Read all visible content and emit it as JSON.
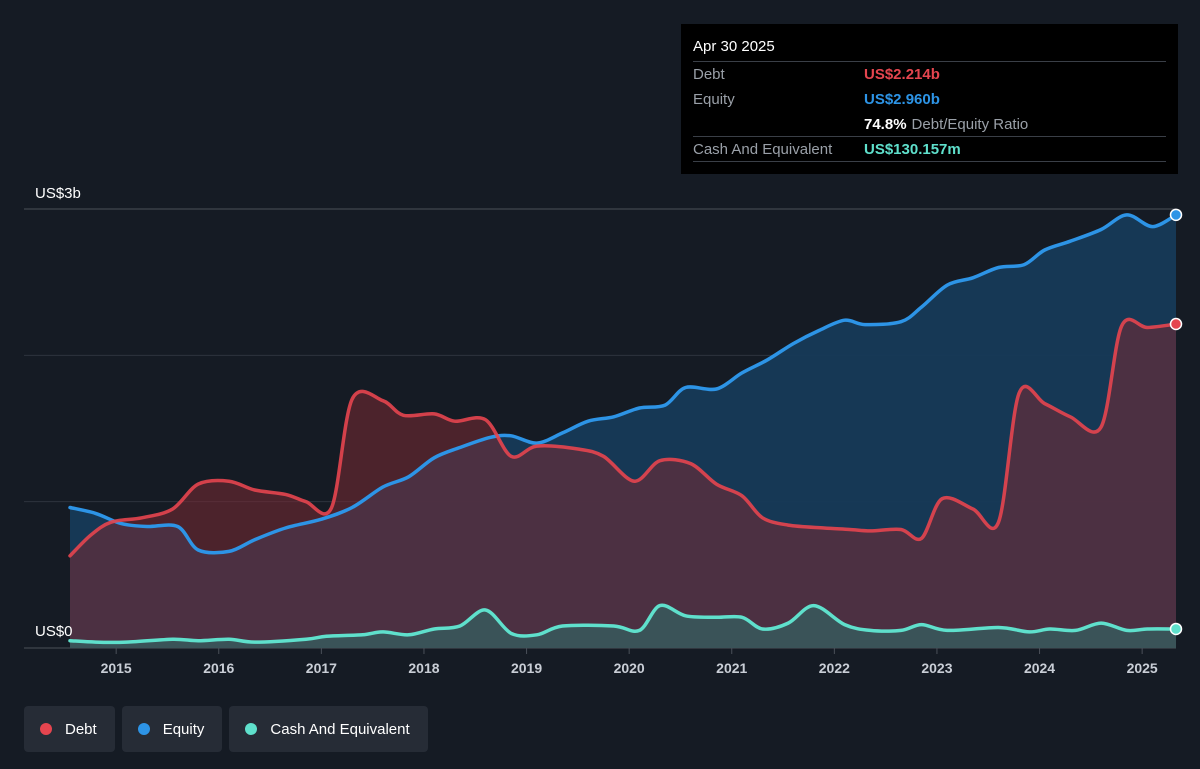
{
  "tooltip": {
    "date": "Apr 30 2025",
    "debt_label": "Debt",
    "debt_value": "US$2.214b",
    "equity_label": "Equity",
    "equity_value": "US$2.960b",
    "ratio_value": "74.8%",
    "ratio_label": "Debt/Equity Ratio",
    "cash_label": "Cash And Equivalent",
    "cash_value": "US$130.157m"
  },
  "legend": [
    {
      "label": "Debt",
      "color": "#e5454f"
    },
    {
      "label": "Equity",
      "color": "#2d94e6"
    },
    {
      "label": "Cash And Equivalent",
      "color": "#5fe0cc"
    }
  ],
  "colors": {
    "debt": "#e5454f",
    "equity": "#2d94e6",
    "cash": "#5fe0cc",
    "background": "#151b24"
  },
  "chart_data": {
    "type": "area",
    "y_axis_labels": [
      "US$3b",
      "US$0"
    ],
    "ylim": [
      0,
      3.0
    ],
    "y_unit": "US$ billions",
    "grid": true,
    "legend_position": "bottom-left",
    "x_ticks": [
      "2015",
      "2016",
      "2017",
      "2018",
      "2019",
      "2020",
      "2021",
      "2022",
      "2023",
      "2024",
      "2025"
    ],
    "x_tick_values": [
      2015,
      2016,
      2017,
      2018,
      2019,
      2020,
      2021,
      2022,
      2023,
      2024,
      2025
    ],
    "xlim": [
      2014.55,
      2025.33
    ],
    "series": [
      {
        "name": "Debt",
        "points": [
          [
            2014.55,
            0.63
          ],
          [
            2014.75,
            0.77
          ],
          [
            2014.95,
            0.86
          ],
          [
            2015.25,
            0.89
          ],
          [
            2015.55,
            0.95
          ],
          [
            2015.8,
            1.12
          ],
          [
            2016.1,
            1.14
          ],
          [
            2016.35,
            1.08
          ],
          [
            2016.65,
            1.05
          ],
          [
            2016.85,
            1.0
          ],
          [
            2017.1,
            0.96
          ],
          [
            2017.3,
            1.7
          ],
          [
            2017.6,
            1.69
          ],
          [
            2017.8,
            1.59
          ],
          [
            2018.1,
            1.6
          ],
          [
            2018.3,
            1.55
          ],
          [
            2018.6,
            1.56
          ],
          [
            2018.85,
            1.31
          ],
          [
            2019.1,
            1.38
          ],
          [
            2019.5,
            1.36
          ],
          [
            2019.75,
            1.31
          ],
          [
            2020.05,
            1.14
          ],
          [
            2020.3,
            1.28
          ],
          [
            2020.6,
            1.26
          ],
          [
            2020.85,
            1.12
          ],
          [
            2021.1,
            1.04
          ],
          [
            2021.3,
            0.89
          ],
          [
            2021.55,
            0.84
          ],
          [
            2021.9,
            0.82
          ],
          [
            2022.15,
            0.81
          ],
          [
            2022.35,
            0.8
          ],
          [
            2022.65,
            0.81
          ],
          [
            2022.85,
            0.75
          ],
          [
            2023.05,
            1.02
          ],
          [
            2023.35,
            0.95
          ],
          [
            2023.6,
            0.86
          ],
          [
            2023.8,
            1.74
          ],
          [
            2024.05,
            1.67
          ],
          [
            2024.3,
            1.58
          ],
          [
            2024.6,
            1.51
          ],
          [
            2024.8,
            2.2
          ],
          [
            2025.05,
            2.19
          ],
          [
            2025.33,
            2.214
          ]
        ]
      },
      {
        "name": "Equity",
        "points": [
          [
            2014.55,
            0.96
          ],
          [
            2014.8,
            0.92
          ],
          [
            2015.05,
            0.85
          ],
          [
            2015.3,
            0.83
          ],
          [
            2015.6,
            0.83
          ],
          [
            2015.8,
            0.67
          ],
          [
            2016.1,
            0.66
          ],
          [
            2016.35,
            0.74
          ],
          [
            2016.65,
            0.82
          ],
          [
            2017.0,
            0.88
          ],
          [
            2017.3,
            0.96
          ],
          [
            2017.6,
            1.1
          ],
          [
            2017.85,
            1.17
          ],
          [
            2018.1,
            1.3
          ],
          [
            2018.35,
            1.37
          ],
          [
            2018.65,
            1.44
          ],
          [
            2018.85,
            1.45
          ],
          [
            2019.1,
            1.4
          ],
          [
            2019.35,
            1.47
          ],
          [
            2019.6,
            1.55
          ],
          [
            2019.85,
            1.58
          ],
          [
            2020.1,
            1.64
          ],
          [
            2020.35,
            1.66
          ],
          [
            2020.55,
            1.78
          ],
          [
            2020.85,
            1.77
          ],
          [
            2021.1,
            1.88
          ],
          [
            2021.35,
            1.97
          ],
          [
            2021.6,
            2.08
          ],
          [
            2021.85,
            2.17
          ],
          [
            2022.1,
            2.24
          ],
          [
            2022.3,
            2.21
          ],
          [
            2022.65,
            2.23
          ],
          [
            2022.85,
            2.33
          ],
          [
            2023.1,
            2.48
          ],
          [
            2023.35,
            2.53
          ],
          [
            2023.6,
            2.6
          ],
          [
            2023.85,
            2.62
          ],
          [
            2024.05,
            2.72
          ],
          [
            2024.3,
            2.78
          ],
          [
            2024.6,
            2.86
          ],
          [
            2024.85,
            2.96
          ],
          [
            2025.1,
            2.88
          ],
          [
            2025.33,
            2.96
          ]
        ]
      },
      {
        "name": "Cash And Equivalent",
        "points": [
          [
            2014.55,
            0.05
          ],
          [
            2014.8,
            0.04
          ],
          [
            2015.1,
            0.04
          ],
          [
            2015.55,
            0.06
          ],
          [
            2015.8,
            0.05
          ],
          [
            2016.1,
            0.06
          ],
          [
            2016.35,
            0.04
          ],
          [
            2016.85,
            0.06
          ],
          [
            2017.05,
            0.08
          ],
          [
            2017.4,
            0.09
          ],
          [
            2017.6,
            0.11
          ],
          [
            2017.85,
            0.09
          ],
          [
            2018.1,
            0.13
          ],
          [
            2018.35,
            0.15
          ],
          [
            2018.6,
            0.26
          ],
          [
            2018.85,
            0.1
          ],
          [
            2019.1,
            0.09
          ],
          [
            2019.35,
            0.15
          ],
          [
            2019.85,
            0.15
          ],
          [
            2020.1,
            0.12
          ],
          [
            2020.3,
            0.29
          ],
          [
            2020.55,
            0.22
          ],
          [
            2020.85,
            0.21
          ],
          [
            2021.1,
            0.21
          ],
          [
            2021.3,
            0.13
          ],
          [
            2021.55,
            0.17
          ],
          [
            2021.8,
            0.29
          ],
          [
            2022.1,
            0.16
          ],
          [
            2022.35,
            0.12
          ],
          [
            2022.65,
            0.12
          ],
          [
            2022.85,
            0.16
          ],
          [
            2023.1,
            0.12
          ],
          [
            2023.6,
            0.14
          ],
          [
            2023.9,
            0.11
          ],
          [
            2024.1,
            0.13
          ],
          [
            2024.35,
            0.12
          ],
          [
            2024.6,
            0.17
          ],
          [
            2024.85,
            0.12
          ],
          [
            2025.05,
            0.13
          ],
          [
            2025.33,
            0.13
          ]
        ]
      }
    ]
  }
}
